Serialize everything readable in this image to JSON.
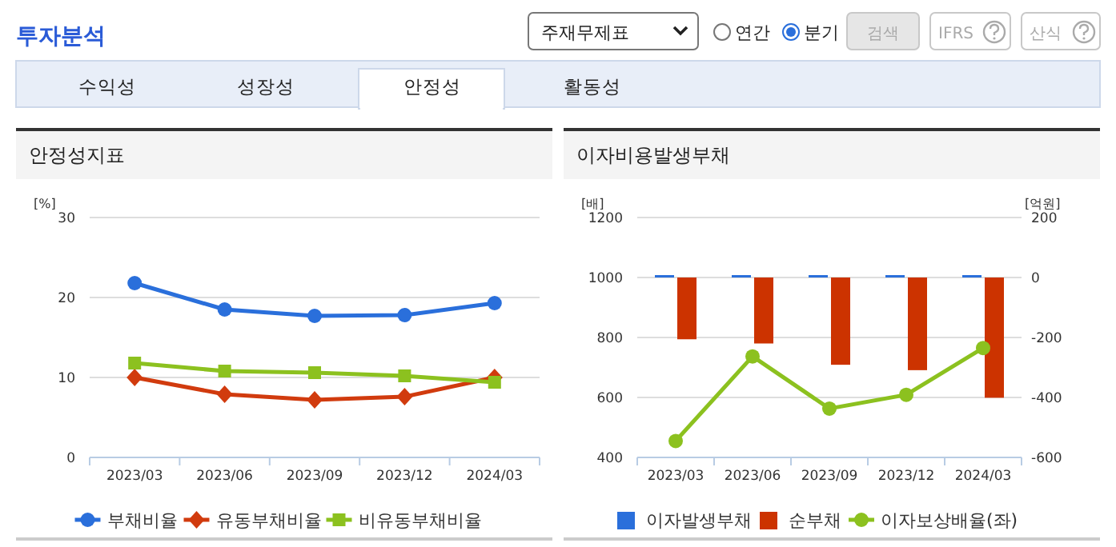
{
  "chart_data": [
    {
      "type": "other",
      "title": "투자분석",
      "annotations": [
        "주재무제표",
        "연간",
        "분기",
        "검색",
        "IFRS",
        "산식",
        "수익성",
        "성장성",
        "안정성",
        "활동성"
      ]
    },
    {
      "type": "line",
      "title": "안정성지표",
      "ylabel": "[%]",
      "categories": [
        "2023/03",
        "2023/06",
        "2023/09",
        "2023/12",
        "2024/03"
      ],
      "ylim": [
        0,
        30
      ],
      "yticks": [
        0,
        10,
        20,
        30
      ],
      "grid": "y",
      "legend": "bottom",
      "series": [
        {
          "name": "부채비율",
          "color": "#2a6fdb",
          "marker": "circle",
          "values": [
            21.8,
            18.5,
            17.7,
            17.8,
            19.3
          ]
        },
        {
          "name": "유동부채비율",
          "color": "#d13b0e",
          "marker": "diamond",
          "values": [
            10.0,
            7.9,
            7.2,
            7.6,
            10.0
          ]
        },
        {
          "name": "비유동부채비율",
          "color": "#8cc11f",
          "marker": "square",
          "values": [
            11.8,
            10.8,
            10.6,
            10.2,
            9.4
          ]
        }
      ]
    },
    {
      "type": "bar",
      "title": "이자비용발생부채",
      "ylabel": "[배]",
      "y2label": "[억원]",
      "categories": [
        "2023/03",
        "2023/06",
        "2023/09",
        "2023/12",
        "2024/03"
      ],
      "ylim": [
        400,
        1200
      ],
      "yticks": [
        400,
        600,
        800,
        1000,
        1200
      ],
      "y2lim": [
        -600,
        200
      ],
      "y2ticks": [
        -600,
        -400,
        -200,
        0,
        200
      ],
      "grid": "y",
      "legend": "bottom",
      "series": [
        {
          "name": "이자발생부채",
          "color": "#2a6fdb",
          "axis": "y2",
          "values": [
            8,
            8,
            8,
            8,
            8
          ]
        },
        {
          "name": "순부채",
          "color": "#cc3300",
          "axis": "y2",
          "values": [
            -206,
            -220,
            -291,
            -309,
            -401
          ]
        },
        {
          "name": "이자보상배율(좌)",
          "type": "line",
          "color": "#8cc11f",
          "marker": "circle",
          "values": [
            455,
            737,
            563,
            609,
            765
          ]
        }
      ]
    }
  ]
}
